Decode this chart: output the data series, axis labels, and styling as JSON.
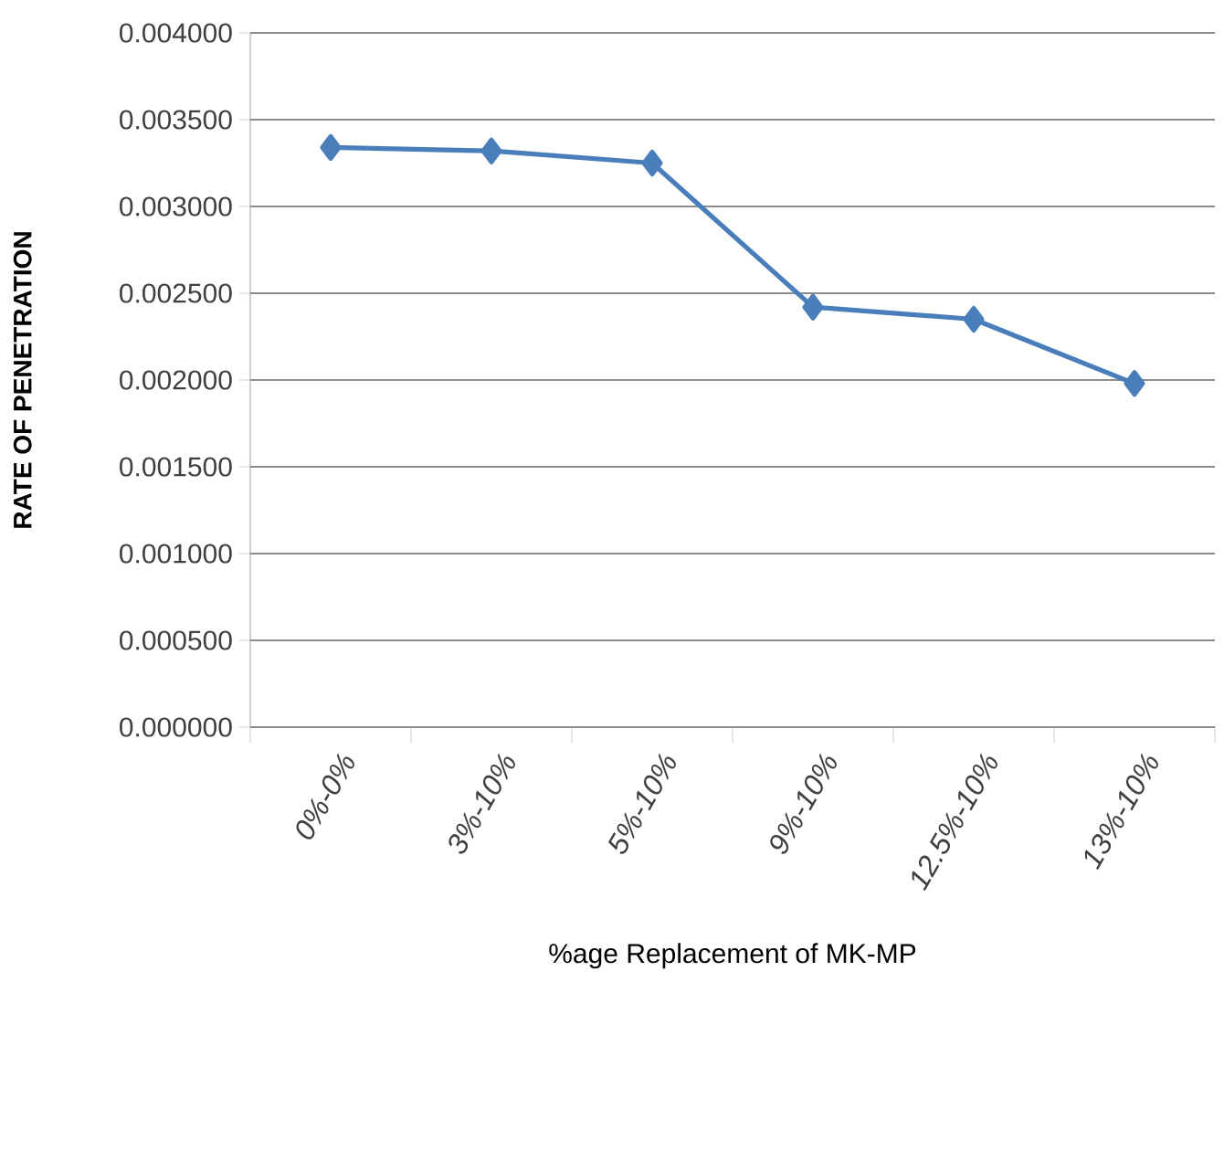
{
  "chart_data": {
    "type": "line",
    "xlabel": "%age Replacement of MK-MP",
    "ylabel": "RATE OF PENETRATION",
    "categories": [
      "0%-0%",
      "3%-10%",
      "5%-10%",
      "9%-10%",
      "12.5%-10%",
      "13%-10%"
    ],
    "series": [
      {
        "color": "#4a7ebb",
        "values": [
          0.00334,
          0.00332,
          0.00325,
          0.00242,
          0.00235,
          0.00198
        ]
      }
    ],
    "ylim": [
      0,
      0.004
    ],
    "yticks": [
      {
        "value": 0,
        "label": "0.000000"
      },
      {
        "value": 0.0005,
        "label": "0.000500"
      },
      {
        "value": 0.001,
        "label": "0.001000"
      },
      {
        "value": 0.0015,
        "label": "0.001500"
      },
      {
        "value": 0.002,
        "label": "0.002000"
      },
      {
        "value": 0.0025,
        "label": "0.002500"
      },
      {
        "value": 0.003,
        "label": "0.003000"
      },
      {
        "value": 0.0035,
        "label": "0.003500"
      },
      {
        "value": 0.004,
        "label": "0.004000"
      }
    ],
    "grid": "y",
    "marker": "diamond",
    "line_style": "solid"
  }
}
